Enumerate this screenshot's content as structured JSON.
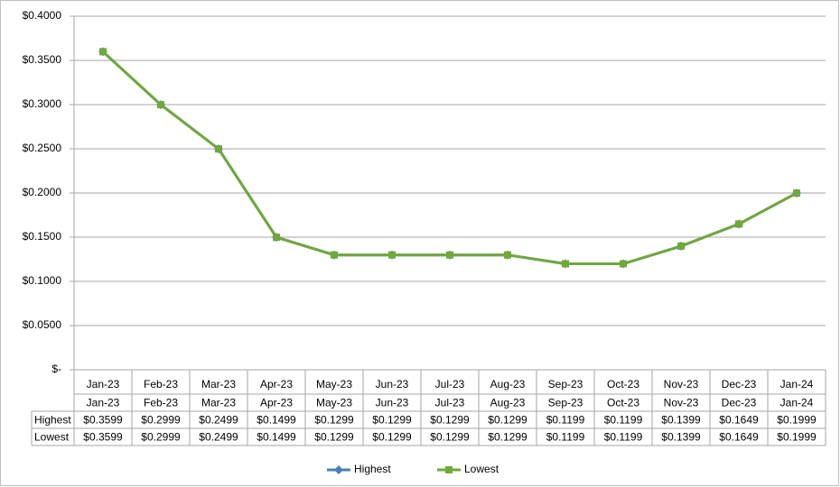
{
  "chart_data": {
    "type": "line",
    "categories": [
      "Jan-23",
      "Feb-23",
      "Mar-23",
      "Apr-23",
      "May-23",
      "Jun-23",
      "Jul-23",
      "Aug-23",
      "Sep-23",
      "Oct-23",
      "Nov-23",
      "Dec-23",
      "Jan-24"
    ],
    "series": [
      {
        "name": "Highest",
        "color": "#4a7ebb",
        "marker": "diamond",
        "values": [
          0.3599,
          0.2999,
          0.2499,
          0.1499,
          0.1299,
          0.1299,
          0.1299,
          0.1299,
          0.1199,
          0.1199,
          0.1399,
          0.1649,
          0.1999
        ],
        "value_labels": [
          "$0.3599",
          "$0.2999",
          "$0.2499",
          "$0.1499",
          "$0.1299",
          "$0.1299",
          "$0.1299",
          "$0.1299",
          "$0.1199",
          "$0.1199",
          "$0.1399",
          "$0.1649",
          "$0.1999"
        ]
      },
      {
        "name": "Lowest",
        "color": "#70a83c",
        "marker": "square",
        "values": [
          0.3599,
          0.2999,
          0.2499,
          0.1499,
          0.1299,
          0.1299,
          0.1299,
          0.1299,
          0.1199,
          0.1199,
          0.1399,
          0.1649,
          0.1999
        ],
        "value_labels": [
          "$0.3599",
          "$0.2999",
          "$0.2499",
          "$0.1499",
          "$0.1299",
          "$0.1299",
          "$0.1299",
          "$0.1299",
          "$0.1199",
          "$0.1199",
          "$0.1399",
          "$0.1649",
          "$0.1999"
        ]
      }
    ],
    "ylim": [
      0,
      0.4
    ],
    "yticks": [
      {
        "value": 0,
        "label": "$-"
      },
      {
        "value": 0.05,
        "label": "$0.0500"
      },
      {
        "value": 0.1,
        "label": "$0.1000"
      },
      {
        "value": 0.15,
        "label": "$0.1500"
      },
      {
        "value": 0.2,
        "label": "$0.2000"
      },
      {
        "value": 0.25,
        "label": "$0.2500"
      },
      {
        "value": 0.3,
        "label": "$0.3000"
      },
      {
        "value": 0.35,
        "label": "$0.3500"
      },
      {
        "value": 0.4,
        "label": "$0.4000"
      }
    ],
    "grid": true,
    "legend": "bottom",
    "data_table": true
  }
}
